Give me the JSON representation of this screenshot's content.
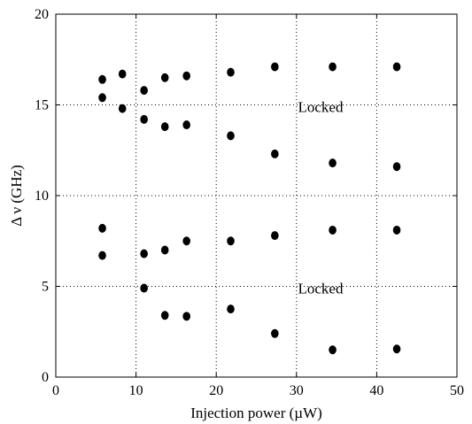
{
  "chart_data": {
    "type": "scatter",
    "xlabel": "Injection power (µW)",
    "ylabel": "Δ ν (GHz)",
    "xlim": [
      0,
      50
    ],
    "ylim": [
      0,
      20
    ],
    "xticks": [
      0,
      10,
      20,
      30,
      40,
      50
    ],
    "yticks": [
      0,
      5,
      10,
      15,
      20
    ],
    "grid": "dotted",
    "marker_color": "#000000",
    "annotations": [
      {
        "text": "Locked",
        "x": 33,
        "y": 14.9
      },
      {
        "text": "Locked",
        "x": 33,
        "y": 4.9
      }
    ],
    "series": [
      {
        "points": [
          [
            5.8,
            16.4
          ],
          [
            8.3,
            16.7
          ],
          [
            11.0,
            15.8
          ],
          [
            13.6,
            16.5
          ],
          [
            16.3,
            16.6
          ],
          [
            21.8,
            16.8
          ],
          [
            27.3,
            17.1
          ],
          [
            34.5,
            17.1
          ],
          [
            42.5,
            17.1
          ],
          [
            5.8,
            15.4
          ],
          [
            8.3,
            14.8
          ],
          [
            11.0,
            14.2
          ],
          [
            13.6,
            13.8
          ],
          [
            16.3,
            13.9
          ],
          [
            21.8,
            13.3
          ],
          [
            27.3,
            12.3
          ],
          [
            34.5,
            11.8
          ],
          [
            42.5,
            11.6
          ],
          [
            5.8,
            8.2
          ],
          [
            11.0,
            6.8
          ],
          [
            13.6,
            7.0
          ],
          [
            16.3,
            7.5
          ],
          [
            21.8,
            7.5
          ],
          [
            27.3,
            7.8
          ],
          [
            34.5,
            8.1
          ],
          [
            42.5,
            8.1
          ],
          [
            5.8,
            6.7
          ],
          [
            11.0,
            4.9
          ],
          [
            13.6,
            3.4
          ],
          [
            16.3,
            3.35
          ],
          [
            21.8,
            3.75
          ],
          [
            27.3,
            2.4
          ],
          [
            34.5,
            1.5
          ],
          [
            42.5,
            1.55
          ]
        ]
      }
    ]
  }
}
